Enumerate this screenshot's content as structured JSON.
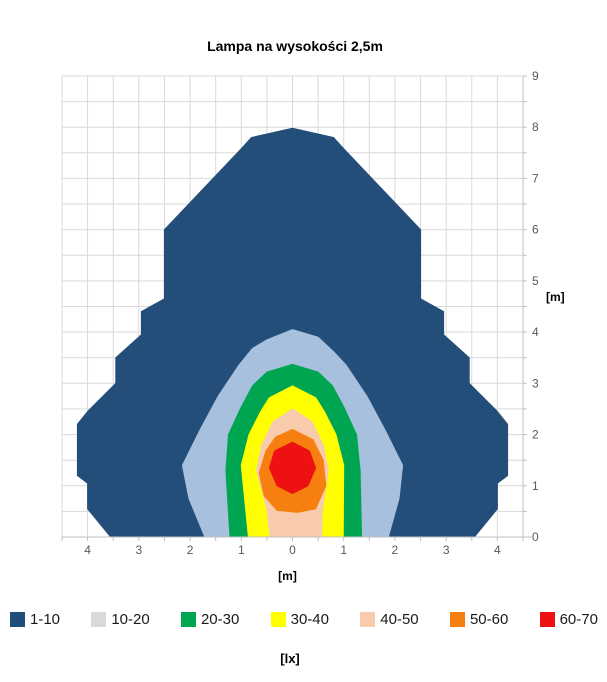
{
  "chart_data": {
    "type": "filled-contour",
    "title": "Lampa na wysokości 2,5m",
    "x_axis": {
      "label": "[m]",
      "range": [
        -4.5,
        4.5
      ],
      "grid_step": 0.5,
      "ticks": [
        [
          -4,
          "4"
        ],
        [
          -3,
          "3"
        ],
        [
          -2,
          "2"
        ],
        [
          -1,
          "1"
        ],
        [
          0,
          "0"
        ],
        [
          1,
          "1"
        ],
        [
          2,
          "2"
        ],
        [
          3,
          "3"
        ],
        [
          4,
          "4"
        ]
      ]
    },
    "y_axis": {
      "label": "[m]",
      "side": "right",
      "range": [
        0,
        9
      ],
      "grid_step": 0.5,
      "ticks": [
        [
          0,
          "0"
        ],
        [
          1,
          "1"
        ],
        [
          2,
          "2"
        ],
        [
          3,
          "3"
        ],
        [
          4,
          "4"
        ],
        [
          5,
          "5"
        ],
        [
          6,
          "6"
        ],
        [
          7,
          "7"
        ],
        [
          8,
          "8"
        ],
        [
          9,
          "9"
        ]
      ]
    },
    "legend": {
      "unit": "[lx]",
      "entries": [
        {
          "label": "1-10",
          "color": "#1F4E79"
        },
        {
          "label": "10-20",
          "color": "#D9D9D9"
        },
        {
          "label": "20-30",
          "color": "#00A551"
        },
        {
          "label": "30-40",
          "color": "#FFFF00"
        },
        {
          "label": "40-50",
          "color": "#F8CBAD"
        },
        {
          "label": "50-60",
          "color": "#F67F10"
        },
        {
          "label": "60-70",
          "color": "#EE1111"
        }
      ]
    },
    "colors": {
      "grid": "#D9D9D9",
      "axis": "#BFBFBF",
      "tick_text": "#595959",
      "background": "#FFFFFF"
    },
    "bands": [
      {
        "range_lx": "1-10",
        "color": "#234E79",
        "points": [
          [
            0,
            7.98
          ],
          [
            0.8,
            7.8
          ],
          [
            1.0,
            7.58
          ],
          [
            2.5,
            6.0
          ],
          [
            2.5,
            4.65
          ],
          [
            2.95,
            4.4
          ],
          [
            2.95,
            3.95
          ],
          [
            3.45,
            3.5
          ],
          [
            3.45,
            3.0
          ],
          [
            4.0,
            2.45
          ],
          [
            4.2,
            2.2
          ],
          [
            4.2,
            1.2
          ],
          [
            4.0,
            1.05
          ],
          [
            4.0,
            0.55
          ],
          [
            3.55,
            0
          ],
          [
            -3.55,
            0
          ],
          [
            -4.0,
            0.55
          ],
          [
            -4.0,
            1.05
          ],
          [
            -4.2,
            1.2
          ],
          [
            -4.2,
            2.2
          ],
          [
            -4.0,
            2.45
          ],
          [
            -3.45,
            3.0
          ],
          [
            -3.45,
            3.5
          ],
          [
            -2.95,
            3.95
          ],
          [
            -2.95,
            4.4
          ],
          [
            -2.5,
            4.65
          ],
          [
            -2.5,
            6.0
          ],
          [
            -1.0,
            7.58
          ],
          [
            -0.8,
            7.8
          ]
        ]
      },
      {
        "range_lx": "10-20",
        "color": "#A6C0DE",
        "points": [
          [
            0,
            4.05
          ],
          [
            0.5,
            3.9
          ],
          [
            0.8,
            3.62
          ],
          [
            1.05,
            3.35
          ],
          [
            1.45,
            2.75
          ],
          [
            1.8,
            2.1
          ],
          [
            2.15,
            1.4
          ],
          [
            2.08,
            0.75
          ],
          [
            1.87,
            0
          ],
          [
            -1.71,
            0
          ],
          [
            -2.02,
            0.75
          ],
          [
            -2.15,
            1.4
          ],
          [
            -1.8,
            2.1
          ],
          [
            -1.45,
            2.75
          ],
          [
            -1.05,
            3.35
          ],
          [
            -0.78,
            3.68
          ],
          [
            -0.5,
            3.85
          ]
        ]
      },
      {
        "range_lx": "20-30",
        "color": "#00A551",
        "points": [
          [
            0,
            3.37
          ],
          [
            0.5,
            3.22
          ],
          [
            0.78,
            2.95
          ],
          [
            1.02,
            2.5
          ],
          [
            1.25,
            2.0
          ],
          [
            1.32,
            1.3
          ],
          [
            1.35,
            0
          ],
          [
            -1.22,
            0
          ],
          [
            -1.3,
            1.3
          ],
          [
            -1.25,
            2.0
          ],
          [
            -1.02,
            2.5
          ],
          [
            -0.78,
            2.95
          ],
          [
            -0.5,
            3.22
          ]
        ]
      },
      {
        "range_lx": "30-40",
        "color": "#FFFF00",
        "points": [
          [
            0,
            2.95
          ],
          [
            0.45,
            2.72
          ],
          [
            0.62,
            2.45
          ],
          [
            0.85,
            2.0
          ],
          [
            1.0,
            1.4
          ],
          [
            0.99,
            0
          ],
          [
            -0.86,
            0
          ],
          [
            -1.0,
            1.4
          ],
          [
            -0.85,
            2.0
          ],
          [
            -0.62,
            2.45
          ],
          [
            -0.45,
            2.72
          ]
        ]
      },
      {
        "range_lx": "40-50",
        "color": "#F8CBAD",
        "points": [
          [
            0,
            2.5
          ],
          [
            0.38,
            2.25
          ],
          [
            0.6,
            1.8
          ],
          [
            0.7,
            1.3
          ],
          [
            0.58,
            0.5
          ],
          [
            0.57,
            0
          ],
          [
            -0.44,
            0
          ],
          [
            -0.5,
            0.55
          ],
          [
            -0.7,
            1.3
          ],
          [
            -0.6,
            1.8
          ],
          [
            -0.38,
            2.25
          ]
        ]
      },
      {
        "range_lx": "50-60",
        "color": "#F67F10",
        "points": [
          [
            0,
            2.1
          ],
          [
            0.4,
            1.9
          ],
          [
            0.6,
            1.5
          ],
          [
            0.65,
            1.0
          ],
          [
            0.45,
            0.55
          ],
          [
            0.1,
            0.48
          ],
          [
            -0.3,
            0.52
          ],
          [
            -0.55,
            0.8
          ],
          [
            -0.65,
            1.25
          ],
          [
            -0.52,
            1.68
          ],
          [
            -0.33,
            1.95
          ]
        ]
      },
      {
        "range_lx": "60-70",
        "color": "#EE1111",
        "points": [
          [
            0,
            1.85
          ],
          [
            0.33,
            1.68
          ],
          [
            0.45,
            1.35
          ],
          [
            0.3,
            1.0
          ],
          [
            0,
            0.85
          ],
          [
            -0.3,
            1.0
          ],
          [
            -0.45,
            1.35
          ],
          [
            -0.35,
            1.68
          ]
        ]
      }
    ]
  }
}
